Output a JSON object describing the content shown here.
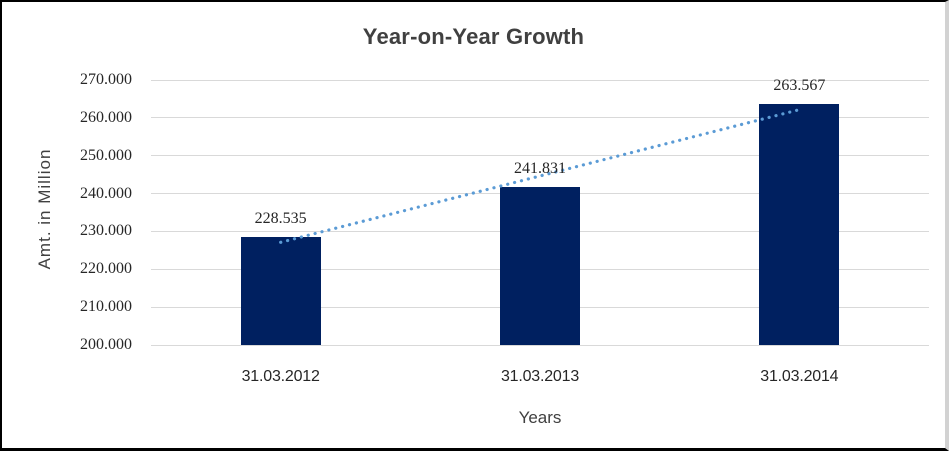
{
  "chart_data": {
    "type": "bar",
    "title": "Year-on-Year Growth",
    "categories": [
      "31.03.2012",
      "31.03.2013",
      "31.03.2014"
    ],
    "values": [
      228.535,
      241.831,
      263.567
    ],
    "data_labels": [
      "228.535",
      "241.831",
      "263.567"
    ],
    "xlabel": "Years",
    "ylabel": "Amt. in Million",
    "ylim": [
      200,
      270
    ],
    "y_ticks": [
      200,
      210,
      220,
      230,
      240,
      250,
      260,
      270
    ],
    "y_tick_labels": [
      "200.000",
      "210.000",
      "220.000",
      "230.000",
      "240.000",
      "250.000",
      "260.000",
      "270.000"
    ],
    "grid": true,
    "legend": "none",
    "bar_color": "#002060",
    "gridline_color": "#d9d9d9",
    "text_color": "#262626",
    "title_color": "#404040",
    "trendline": {
      "type": "linear",
      "style": "dotted",
      "color": "#5b9bd5",
      "spans": "first-to-last-category"
    }
  }
}
